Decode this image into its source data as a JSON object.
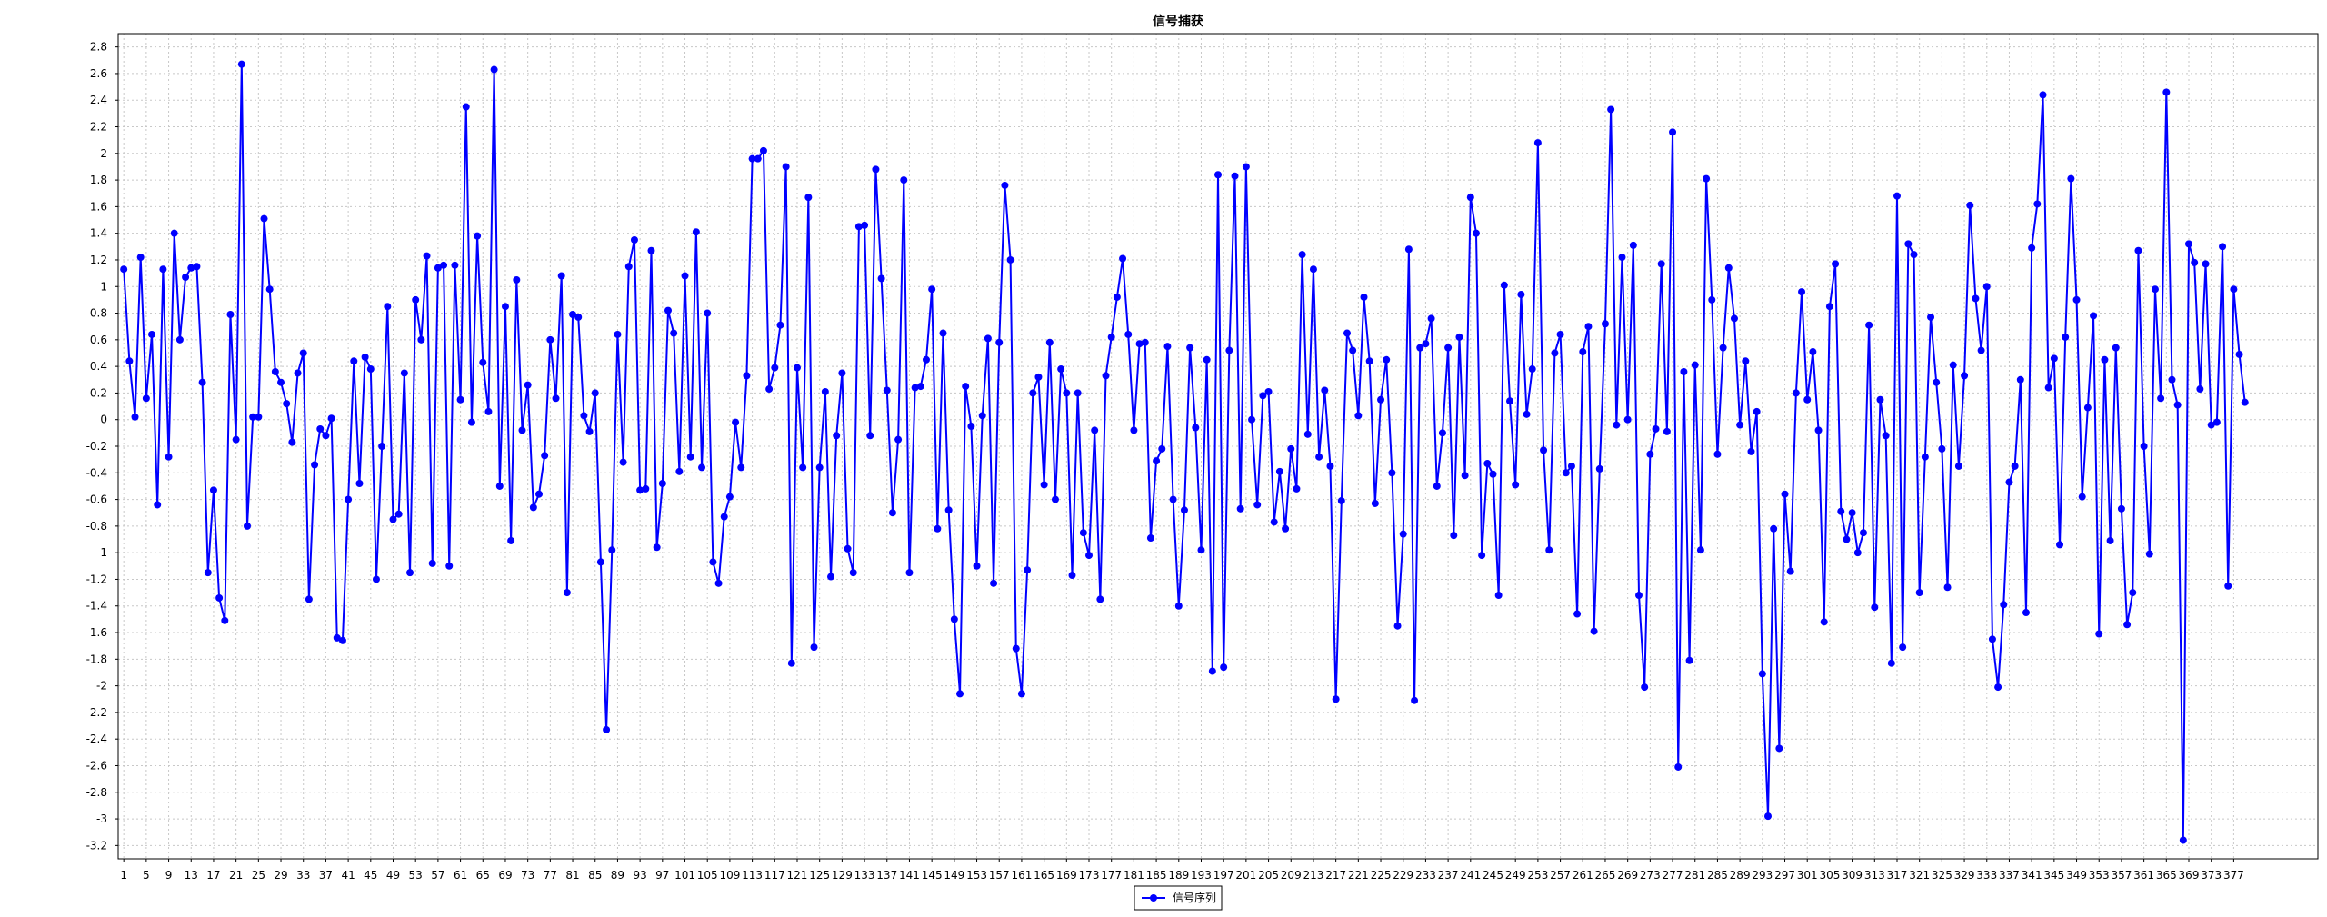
{
  "chart_data": {
    "type": "line",
    "title": "信号捕获",
    "xlabel": "",
    "ylabel": "",
    "xlim": [
      0,
      392
    ],
    "ylim": [
      -3.3,
      2.9
    ],
    "y_ticks": [
      2.8,
      2.6,
      2.4,
      2.2,
      2,
      1.8,
      1.6,
      1.4,
      1.2,
      1,
      0.8,
      0.6,
      0.4,
      0.2,
      0,
      -0.2,
      -0.4,
      -0.6,
      -0.8,
      -1,
      -1.2,
      -1.4,
      -1.6,
      -1.8,
      -2,
      -2.2,
      -2.4,
      -2.6,
      -2.8,
      -3,
      -3.2
    ],
    "x_ticks": [
      1,
      5,
      9,
      13,
      17,
      21,
      25,
      29,
      33,
      37,
      41,
      45,
      49,
      53,
      57,
      61,
      65,
      69,
      73,
      77,
      81,
      85,
      89,
      93,
      97,
      101,
      105,
      109,
      113,
      117,
      121,
      125,
      129,
      133,
      137,
      141,
      145,
      149,
      153,
      157,
      161,
      165,
      169,
      173,
      177,
      181,
      185,
      189,
      193,
      197,
      201,
      205,
      209,
      213,
      217,
      221,
      225,
      229,
      233,
      237,
      241,
      245,
      249,
      253,
      257,
      261,
      265,
      269,
      273,
      277,
      281,
      285,
      289,
      293,
      297,
      301,
      305,
      309,
      313,
      317,
      321,
      325,
      329,
      333,
      337,
      341,
      345,
      349,
      353,
      357,
      361,
      365,
      369,
      373,
      377
    ],
    "grid": true,
    "legend_position": "bottom-center",
    "series": [
      {
        "name": "信号序列",
        "color": "#0000ff",
        "x_start": 1,
        "values": [
          1.13,
          0.44,
          0.02,
          1.22,
          0.16,
          0.64,
          -0.64,
          1.13,
          -0.28,
          1.4,
          0.6,
          1.07,
          1.14,
          1.15,
          0.28,
          -1.15,
          -0.53,
          -1.34,
          -1.51,
          0.79,
          -0.15,
          2.67,
          -0.8,
          0.02,
          0.02,
          1.51,
          0.98,
          0.36,
          0.28,
          0.12,
          -0.17,
          0.35,
          0.5,
          -1.35,
          -0.34,
          -0.07,
          -0.12,
          0.01,
          -1.64,
          -1.66,
          -0.6,
          0.44,
          -0.48,
          0.47,
          0.38,
          -1.2,
          -0.2,
          0.85,
          -0.75,
          -0.71,
          0.35,
          -1.15,
          0.9,
          0.6,
          1.23,
          -1.08,
          1.14,
          1.16,
          -1.1,
          1.16,
          0.15,
          2.35,
          -0.02,
          1.38,
          0.43,
          0.06,
          2.63,
          -0.5,
          0.85,
          -0.91,
          1.05,
          -0.08,
          0.26,
          -0.66,
          -0.56,
          -0.27,
          0.6,
          0.16,
          1.08,
          -1.3,
          0.79,
          0.77,
          0.03,
          -0.09,
          0.2,
          -1.07,
          -2.33,
          -0.98,
          0.64,
          -0.32,
          1.15,
          1.35,
          -0.53,
          -0.52,
          1.27,
          -0.96,
          -0.48,
          0.82,
          0.65,
          -0.39,
          1.08,
          -0.28,
          1.41,
          -0.36,
          0.8,
          -1.07,
          -1.23,
          -0.73,
          -0.58,
          -0.02,
          -0.36,
          0.33,
          1.96,
          1.96,
          2.02,
          0.23,
          0.39,
          0.71,
          1.9,
          -1.83,
          0.39,
          -0.36,
          1.67,
          -1.71,
          -0.36,
          0.21,
          -1.18,
          -0.12,
          0.35,
          -0.97,
          -1.15,
          1.45,
          1.46,
          -0.12,
          1.88,
          1.06,
          0.22,
          -0.7,
          -0.15,
          1.8,
          -1.15,
          0.24,
          0.25,
          0.45,
          0.98,
          -0.82,
          0.65,
          -0.68,
          -1.5,
          -2.06,
          0.25,
          -0.05,
          -1.1,
          0.03,
          0.61,
          -1.23,
          0.58,
          1.76,
          1.2,
          -1.72,
          -2.06,
          -1.13,
          0.2,
          0.32,
          -0.49,
          0.58,
          -0.6,
          0.38,
          0.2,
          -1.17,
          0.2,
          -0.85,
          -1.02,
          -0.08,
          -1.35,
          0.33,
          0.62,
          0.92,
          1.21,
          0.64,
          -0.08,
          0.57,
          0.58,
          -0.89,
          -0.31,
          -0.22,
          0.55,
          -0.6,
          -1.4,
          -0.68,
          0.54,
          -0.06,
          -0.98,
          0.45,
          -1.89,
          1.84,
          -1.86,
          0.52,
          1.83,
          -0.67,
          1.9,
          0.0,
          -0.64,
          0.18,
          0.21,
          -0.77,
          -0.39,
          -0.82,
          -0.22,
          -0.52,
          1.24,
          -0.11,
          1.13,
          -0.28,
          0.22,
          -0.35,
          -2.1,
          -0.61,
          0.65,
          0.52,
          0.03,
          0.92,
          0.44,
          -0.63,
          0.15,
          0.45,
          -0.4,
          -1.55,
          -0.86,
          1.28,
          -2.11,
          0.54,
          0.57,
          0.76,
          -0.5,
          -0.1,
          0.54,
          -0.87,
          0.62,
          -0.42,
          1.67,
          1.4,
          -1.02,
          -0.33,
          -0.41,
          -1.32,
          1.01,
          0.14,
          -0.49,
          0.94,
          0.04,
          0.38,
          2.08,
          -0.23,
          -0.98,
          0.5,
          0.64,
          -0.4,
          -0.35,
          -1.46,
          0.51,
          0.7,
          -1.59,
          -0.37,
          0.72,
          2.33,
          -0.04,
          1.22,
          0.0,
          1.31,
          -1.32,
          -2.01,
          -0.26,
          -0.07,
          1.17,
          -0.09,
          2.16,
          -2.61,
          0.36,
          -1.81,
          0.41,
          -0.98,
          1.81,
          0.9,
          -0.26,
          0.54,
          1.14,
          0.76,
          -0.04,
          0.44,
          -0.24,
          0.06,
          -1.91,
          -2.98,
          -0.82,
          -2.47,
          -0.56,
          -1.14,
          0.2,
          0.96,
          0.15,
          0.51,
          -0.08,
          -1.52,
          0.85,
          1.17,
          -0.69,
          -0.9,
          -0.7,
          -1.0,
          -0.85,
          0.71,
          -1.41,
          0.15,
          -0.12,
          -1.83,
          1.68,
          -1.71,
          1.32,
          1.24,
          -1.3,
          -0.28,
          0.77,
          0.28,
          -0.22,
          -1.26,
          0.41,
          -0.35,
          0.33,
          1.61,
          0.91,
          0.52,
          1.0,
          -1.65,
          -2.01,
          -1.39,
          -0.47,
          -0.35,
          0.3,
          -1.45,
          1.29,
          1.62,
          2.44,
          0.24,
          0.46,
          -0.94,
          0.62,
          1.81,
          0.9,
          -0.58,
          0.09,
          0.78,
          -1.61,
          0.45,
          -0.91,
          0.54,
          -0.67,
          -1.54,
          -1.3,
          1.27,
          -0.2,
          -1.01,
          0.98,
          0.16,
          2.46,
          0.3,
          0.11,
          -3.16,
          1.32,
          1.18,
          0.23,
          1.17,
          -0.04,
          -0.02,
          1.3,
          -1.25,
          0.98,
          0.49,
          0.13
        ]
      }
    ]
  }
}
